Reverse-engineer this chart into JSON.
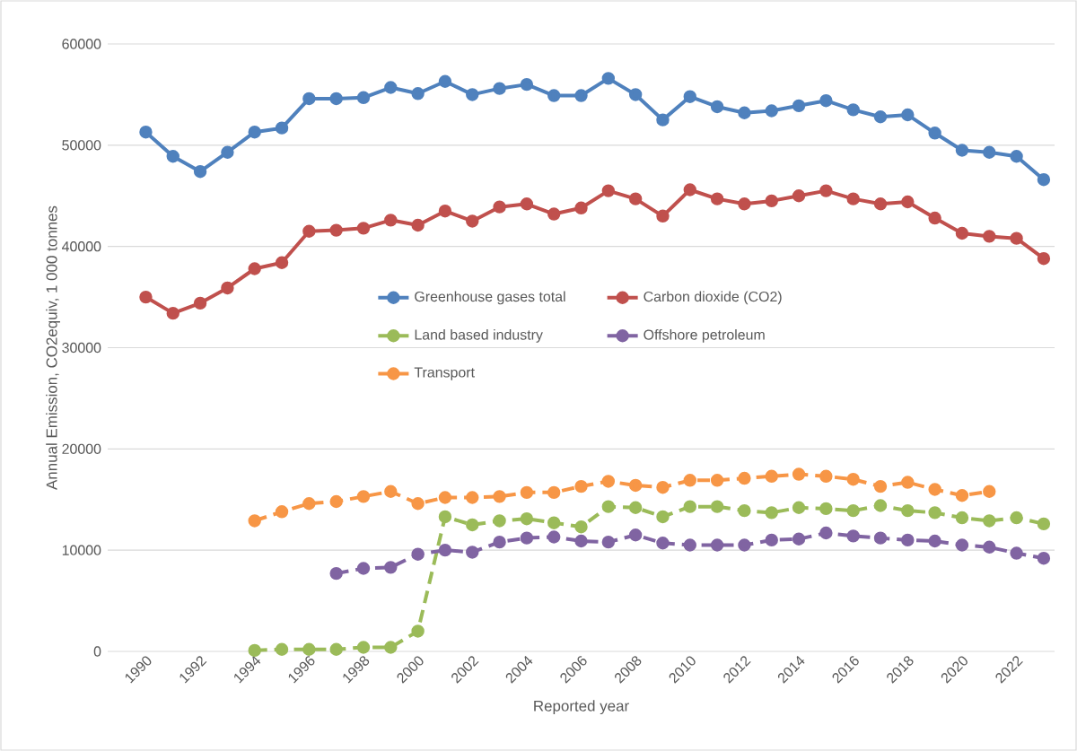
{
  "chart_data": {
    "type": "line",
    "xlabel": "Reported year",
    "ylabel": "Annual Emission, CO2equiv, 1 000 tonnes",
    "x": [
      1990,
      1991,
      1992,
      1993,
      1994,
      1995,
      1996,
      1997,
      1998,
      1999,
      2000,
      2001,
      2002,
      2003,
      2004,
      2005,
      2006,
      2007,
      2008,
      2009,
      2010,
      2011,
      2012,
      2013,
      2014,
      2015,
      2016,
      2017,
      2018,
      2019,
      2020,
      2021,
      2022,
      2023
    ],
    "series": [
      {
        "name": "Greenhouse gases total",
        "color": "#4f81bd",
        "line_style": "solid",
        "values": [
          51300,
          48900,
          47400,
          49300,
          51300,
          51700,
          54600,
          54600,
          54700,
          55700,
          55100,
          56300,
          55000,
          55600,
          56000,
          54900,
          54900,
          56600,
          55000,
          52500,
          54800,
          53800,
          53200,
          53400,
          53900,
          54400,
          53500,
          52800,
          53000,
          51200,
          49500,
          49300,
          48900,
          46600
        ]
      },
      {
        "name": "Carbon dioxide (CO2)",
        "color": "#c0504d",
        "line_style": "solid",
        "values": [
          35000,
          33400,
          34400,
          35900,
          37800,
          38400,
          41500,
          41600,
          41800,
          42600,
          42100,
          43500,
          42500,
          43900,
          44200,
          43200,
          43800,
          45500,
          44700,
          43000,
          45600,
          44700,
          44200,
          44500,
          45000,
          45500,
          44700,
          44200,
          44400,
          42800,
          41300,
          41000,
          40800,
          38800
        ]
      },
      {
        "name": "Land based industry",
        "color": "#9bbb59",
        "line_style": "dashed",
        "values": [
          null,
          null,
          null,
          null,
          100,
          200,
          200,
          200,
          400,
          400,
          2000,
          13300,
          12500,
          12900,
          13100,
          12700,
          12300,
          14300,
          14200,
          13300,
          14300,
          14300,
          13900,
          13700,
          14200,
          14100,
          13900,
          14400,
          13900,
          13700,
          13200,
          12900,
          13200,
          12600
        ]
      },
      {
        "name": "Offshore petroleum",
        "color": "#8064a2",
        "line_style": "dashed",
        "values": [
          null,
          null,
          null,
          null,
          null,
          null,
          null,
          7700,
          8200,
          8300,
          9600,
          10000,
          9800,
          10800,
          11200,
          11300,
          10900,
          10800,
          11500,
          10700,
          10500,
          10500,
          10500,
          11000,
          11100,
          11700,
          11400,
          11200,
          11000,
          10900,
          10500,
          10300,
          9700,
          9200
        ]
      },
      {
        "name": "Transport",
        "color": "#f79646",
        "line_style": "dashed",
        "values": [
          null,
          null,
          null,
          null,
          12900,
          13800,
          14600,
          14800,
          15300,
          15800,
          14600,
          15200,
          15200,
          15300,
          15700,
          15700,
          16300,
          16800,
          16400,
          16200,
          16900,
          16900,
          17100,
          17300,
          17500,
          17300,
          17000,
          16300,
          16700,
          16000,
          15400,
          15800,
          null,
          null
        ]
      }
    ],
    "xlim": [
      1988.6,
      2023.4
    ],
    "xticks": [
      1990,
      1992,
      1994,
      1996,
      1998,
      2000,
      2002,
      2004,
      2006,
      2008,
      2010,
      2012,
      2014,
      2016,
      2018,
      2020,
      2022
    ],
    "ylim": [
      0,
      60000
    ],
    "yticks": [
      0,
      10000,
      20000,
      30000,
      40000,
      50000,
      60000
    ],
    "grid": "y",
    "legend": "center",
    "marker": "circle"
  }
}
